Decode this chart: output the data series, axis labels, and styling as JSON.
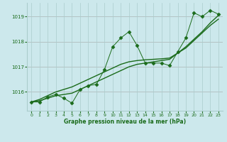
{
  "title": "Graphe pression niveau de la mer (hPa)",
  "background_color": "#cce8ec",
  "grid_color": "#aacccc",
  "line_color": "#1a6b1a",
  "text_color": "#1a6b1a",
  "xlim": [
    -0.5,
    23.5
  ],
  "ylim": [
    1015.25,
    1019.55
  ],
  "yticks": [
    1016,
    1017,
    1018,
    1019
  ],
  "xticks": [
    0,
    1,
    2,
    3,
    4,
    5,
    6,
    7,
    8,
    9,
    10,
    11,
    12,
    13,
    14,
    15,
    16,
    17,
    18,
    19,
    20,
    21,
    22,
    23
  ],
  "hours": [
    0,
    1,
    2,
    3,
    4,
    5,
    6,
    7,
    8,
    9,
    10,
    11,
    12,
    13,
    14,
    15,
    16,
    17,
    18,
    19,
    20,
    21,
    22,
    23
  ],
  "pressure_detailed": [
    1015.6,
    1015.6,
    1015.8,
    1015.9,
    1015.75,
    1015.55,
    1016.1,
    1016.25,
    1016.3,
    1016.9,
    1017.8,
    1018.15,
    1018.4,
    1017.85,
    1017.15,
    1017.15,
    1017.15,
    1017.05,
    1017.6,
    1018.15,
    1019.15,
    1019.0,
    1019.25,
    1019.1
  ],
  "pressure_smooth1": [
    1015.6,
    1015.65,
    1015.75,
    1015.85,
    1015.9,
    1015.95,
    1016.1,
    1016.25,
    1016.4,
    1016.55,
    1016.7,
    1016.85,
    1017.0,
    1017.1,
    1017.15,
    1017.2,
    1017.25,
    1017.3,
    1017.55,
    1017.8,
    1018.1,
    1018.4,
    1018.75,
    1019.05
  ],
  "pressure_smooth2": [
    1015.6,
    1015.7,
    1015.85,
    1016.0,
    1016.1,
    1016.2,
    1016.35,
    1016.5,
    1016.65,
    1016.8,
    1016.95,
    1017.1,
    1017.2,
    1017.25,
    1017.28,
    1017.3,
    1017.32,
    1017.35,
    1017.55,
    1017.75,
    1018.05,
    1018.35,
    1018.65,
    1018.9
  ]
}
